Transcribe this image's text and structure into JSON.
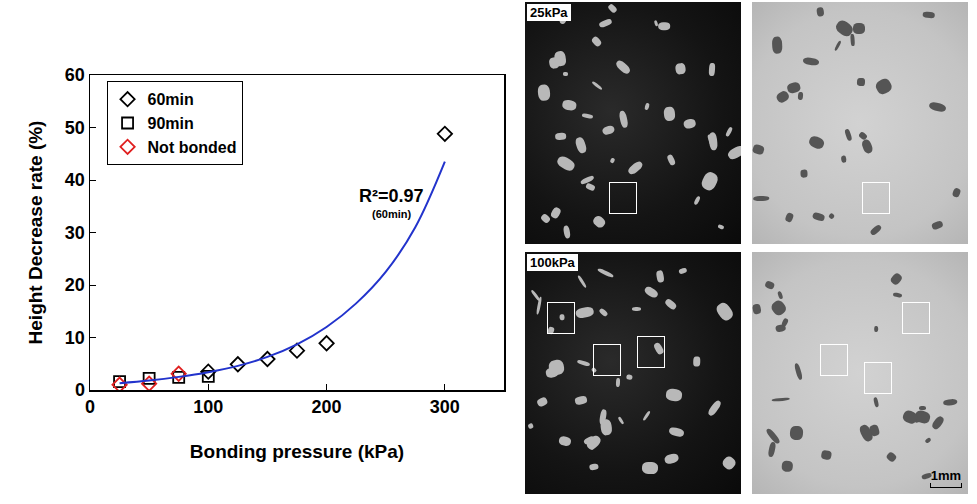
{
  "chart_data": {
    "type": "scatter",
    "x_label": "Bonding pressure (kPa)",
    "y_label": "Height Decrease rate (%)",
    "xlim": [
      0,
      350
    ],
    "xticks": [
      0,
      100,
      200,
      300
    ],
    "ylim": [
      0,
      60
    ],
    "yticks": [
      0,
      10,
      20,
      30,
      40,
      50,
      60
    ],
    "grid": false,
    "legend": "upper left",
    "series": [
      {
        "name": "60min",
        "color": "#000000",
        "marker": "diamond-open",
        "type": "scatter",
        "x": [
          100,
          125,
          150,
          175,
          200,
          300
        ],
        "values": [
          3.5,
          4.9,
          5.9,
          7.5,
          8.9,
          48.8
        ]
      },
      {
        "name": "90min",
        "color": "#000000",
        "marker": "square-open",
        "type": "scatter",
        "x": [
          25,
          50,
          75,
          100
        ],
        "values": [
          1.6,
          2.2,
          2.4,
          2.6
        ]
      },
      {
        "name": "Not bonded",
        "color": "#e02020",
        "marker": "diamond-open",
        "type": "scatter",
        "x": [
          25,
          50,
          75
        ],
        "values": [
          1.0,
          1.2,
          3.1
        ]
      },
      {
        "color": "#2233cc",
        "type": "line",
        "line_style": "solid",
        "x": [
          25,
          50,
          75,
          100,
          125,
          150,
          175,
          200,
          225,
          250,
          275,
          300
        ],
        "values": [
          1.3,
          1.8,
          2.5,
          3.4,
          4.6,
          6.3,
          8.7,
          12.0,
          16.5,
          22.5,
          31.0,
          43.5
        ]
      }
    ],
    "annotations": [
      {
        "text": "R²=0.97",
        "x": 255,
        "y": 37
      },
      {
        "text": "(60min)",
        "x": 255,
        "y": 33.5
      }
    ]
  },
  "images": [
    {
      "label": "25kPa"
    },
    {
      "label": "100kPa"
    }
  ],
  "scale_bar": "1mm"
}
